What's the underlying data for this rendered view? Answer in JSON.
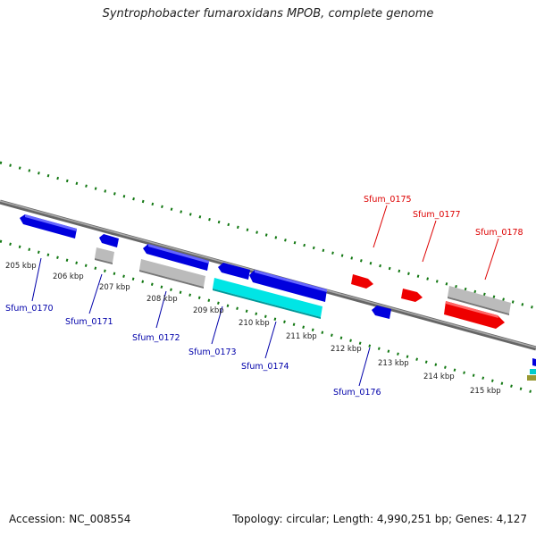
{
  "title": "Syntrophobacter fumaroxidans MPOB, complete genome",
  "footer": {
    "accession": "Accession: NC_008554",
    "summary": "Topology: circular; Length: 4,990,251 bp; Genes: 4,127"
  },
  "colors": {
    "forward_gene": "#ee0000",
    "reverse_gene": "#0000dd",
    "grey_gene": "#bbbbbb",
    "cyan_gene": "#00e5e5",
    "backbone": "#777777",
    "dots": "#117711",
    "label_red": "#dd0000",
    "label_blue": "#0000aa"
  },
  "kbp_ticks": [
    "205 kbp",
    "206 kbp",
    "207 kbp",
    "208 kbp",
    "209 kbp",
    "210 kbp",
    "211 kbp",
    "212 kbp",
    "213 kbp",
    "214 kbp",
    "215 kbp"
  ],
  "gene_labels": [
    {
      "name": "Sfum_0175",
      "strand": "forward"
    },
    {
      "name": "Sfum_0177",
      "strand": "forward"
    },
    {
      "name": "Sfum_0178",
      "strand": "forward"
    },
    {
      "name": "Sfum_0170",
      "strand": "reverse"
    },
    {
      "name": "Sfum_0171",
      "strand": "reverse"
    },
    {
      "name": "Sfum_0172",
      "strand": "reverse"
    },
    {
      "name": "Sfum_0173",
      "strand": "reverse"
    },
    {
      "name": "Sfum_0174",
      "strand": "reverse"
    },
    {
      "name": "Sfum_0176",
      "strand": "reverse"
    }
  ]
}
